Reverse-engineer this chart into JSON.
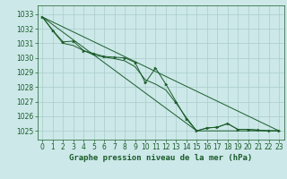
{
  "background_color": "#cce8e8",
  "grid_color": "#aacccc",
  "line_color": "#1a5c2a",
  "xlabel": "Graphe pression niveau de la mer (hPa)",
  "xlabel_color": "#1a5c2a",
  "xlabel_fontsize": 6.5,
  "tick_color": "#1a5c2a",
  "tick_fontsize": 5.5,
  "ylim": [
    1024.4,
    1033.6
  ],
  "xlim": [
    -0.5,
    23.5
  ],
  "yticks": [
    1025,
    1026,
    1027,
    1028,
    1029,
    1030,
    1031,
    1032,
    1033
  ],
  "xticks": [
    0,
    1,
    2,
    3,
    4,
    5,
    6,
    7,
    8,
    9,
    10,
    11,
    12,
    13,
    14,
    15,
    16,
    17,
    18,
    19,
    20,
    21,
    22,
    23
  ],
  "line1_x": [
    0,
    1,
    2,
    3,
    4,
    5,
    6,
    7,
    8,
    9,
    10,
    11,
    12,
    13,
    14,
    15,
    16,
    17,
    18,
    19,
    20,
    21,
    22,
    23
  ],
  "line1_y": [
    1032.8,
    1031.9,
    1031.1,
    1031.15,
    1030.5,
    1030.3,
    1030.1,
    1030.05,
    1030.0,
    1029.7,
    1028.3,
    1029.3,
    1028.2,
    1027.0,
    1025.8,
    1025.0,
    1025.2,
    1025.25,
    1025.5,
    1025.1,
    1025.1,
    1025.05,
    1025.0,
    1025.0
  ],
  "line2_x": [
    0,
    23
  ],
  "line2_y": [
    1032.8,
    1025.0
  ],
  "line3_x": [
    0,
    15,
    23
  ],
  "line3_y": [
    1032.8,
    1025.0,
    1025.0
  ],
  "line4_x": [
    0,
    1,
    2,
    3,
    4,
    5,
    6,
    7,
    8,
    9,
    10,
    11,
    12,
    13,
    14,
    15,
    16,
    17,
    18,
    19,
    20,
    21,
    22,
    23
  ],
  "line4_y": [
    1032.8,
    1031.85,
    1031.0,
    1030.85,
    1030.5,
    1030.2,
    1030.05,
    1029.95,
    1029.8,
    1029.4,
    1028.5,
    1028.2,
    1027.8,
    1026.9,
    1025.9,
    1025.0,
    1025.2,
    1025.25,
    1025.5,
    1025.1,
    1025.1,
    1025.05,
    1025.0,
    1025.0
  ],
  "lw": 0.7,
  "markersize": 2.2
}
